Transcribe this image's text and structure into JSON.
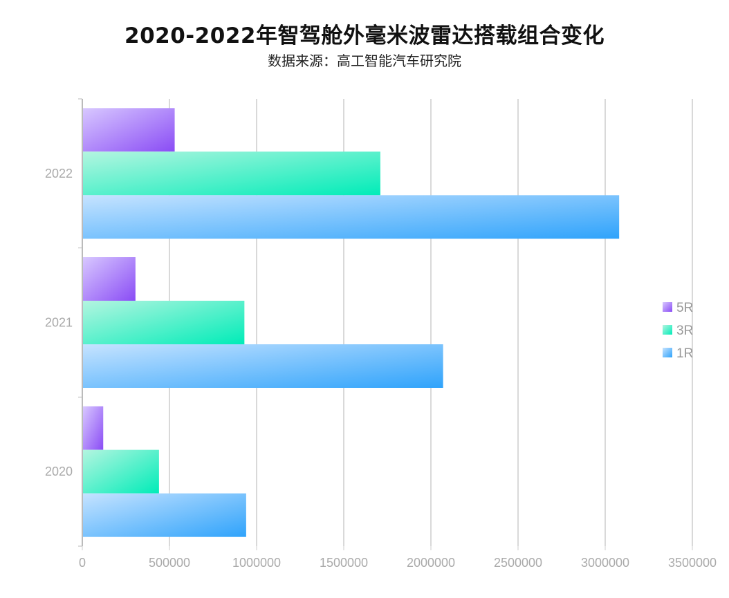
{
  "title": "2020-2022年智驾舱外毫米波雷达搭载组合变化",
  "subtitle": "数据来源：高工智能汽车研究院",
  "chart_data": {
    "type": "bar",
    "orientation": "horizontal",
    "title": "2020-2022年智驾舱外毫米波雷达搭载组合变化",
    "subtitle": "数据来源：高工智能汽车研究院",
    "categories": [
      "2020",
      "2021",
      "2022"
    ],
    "series": [
      {
        "name": "5R",
        "values": [
          120000,
          305000,
          530000
        ],
        "color_start": "#d8c8ff",
        "color_end": "#8a4cf5"
      },
      {
        "name": "3R",
        "values": [
          440000,
          930000,
          1710000
        ],
        "color_start": "#b4f5e0",
        "color_end": "#00ecb8"
      },
      {
        "name": "1R",
        "values": [
          940000,
          2070000,
          3080000
        ],
        "color_start": "#c6e3ff",
        "color_end": "#2fa3fb"
      }
    ],
    "xlim": [
      0,
      3500000
    ],
    "x_ticks": [
      "0",
      "500000",
      "1000000",
      "1500000",
      "2000000",
      "2500000",
      "3000000",
      "3500000"
    ],
    "grid": true,
    "legend_position": "right"
  }
}
